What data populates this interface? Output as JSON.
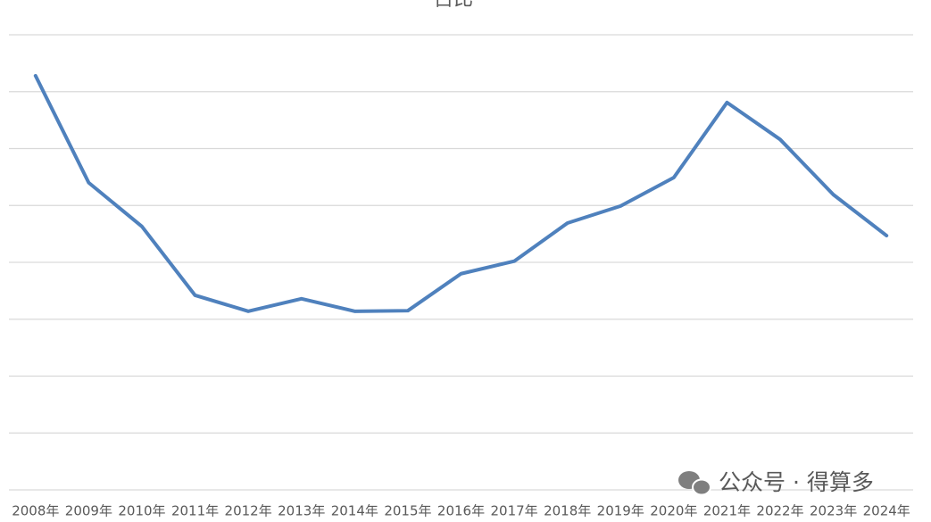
{
  "chart_data": {
    "type": "line",
    "title": "占比",
    "categories": [
      "2008年",
      "2009年",
      "2010年",
      "2011年",
      "2012年",
      "2013年",
      "2014年",
      "2015年",
      "2016年",
      "2017年",
      "2018年",
      "2019年",
      "2020年",
      "2021年",
      "2022年",
      "2023年",
      "2024年"
    ],
    "series": [
      {
        "name": "占比",
        "color": "#4f81bd",
        "values": [
          7.28,
          5.4,
          4.63,
          3.42,
          3.14,
          3.36,
          3.14,
          3.15,
          3.8,
          4.02,
          4.69,
          4.99,
          5.49,
          6.81,
          6.16,
          5.19,
          4.47
        ]
      }
    ],
    "ylim": [
      0,
      8
    ],
    "yticks": [
      0,
      1,
      2,
      3,
      4,
      5,
      6,
      7,
      8
    ],
    "grid": true
  },
  "watermark": "公众号 · 得算多"
}
